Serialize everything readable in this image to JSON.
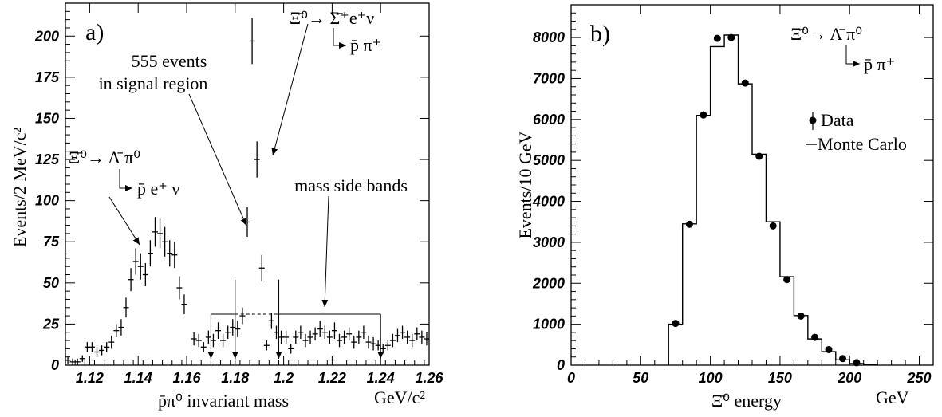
{
  "chart_data": [
    {
      "type": "scatter",
      "panel": "a)",
      "xlabel_main": "p̄π⁰ invariant mass",
      "xlabel_unit": "GeV/c²",
      "ylabel": "Events/2 MeV/c²",
      "xlim": [
        1.11,
        1.26
      ],
      "ylim": [
        0,
        220
      ],
      "xticks": [
        "1.12",
        "1.14",
        "1.16",
        "1.18",
        "1.2",
        "1.22",
        "1.24",
        "1.26"
      ],
      "yticks": [
        "0",
        "25",
        "50",
        "75",
        "100",
        "125",
        "150",
        "175",
        "200"
      ],
      "series": [
        {
          "points": [
            {
              "x": 1.111,
              "y": 3,
              "e": 2
            },
            {
              "x": 1.113,
              "y": 2,
              "e": 2
            },
            {
              "x": 1.115,
              "y": 2,
              "e": 2
            },
            {
              "x": 1.117,
              "y": 4,
              "e": 2
            },
            {
              "x": 1.119,
              "y": 11,
              "e": 3
            },
            {
              "x": 1.121,
              "y": 11,
              "e": 3
            },
            {
              "x": 1.123,
              "y": 8,
              "e": 3
            },
            {
              "x": 1.125,
              "y": 9,
              "e": 3
            },
            {
              "x": 1.127,
              "y": 11,
              "e": 3
            },
            {
              "x": 1.129,
              "y": 14,
              "e": 4
            },
            {
              "x": 1.131,
              "y": 21,
              "e": 4
            },
            {
              "x": 1.133,
              "y": 23,
              "e": 5
            },
            {
              "x": 1.135,
              "y": 35,
              "e": 6
            },
            {
              "x": 1.137,
              "y": 52,
              "e": 7
            },
            {
              "x": 1.139,
              "y": 63,
              "e": 8
            },
            {
              "x": 1.141,
              "y": 60,
              "e": 8
            },
            {
              "x": 1.143,
              "y": 55,
              "e": 7
            },
            {
              "x": 1.145,
              "y": 68,
              "e": 8
            },
            {
              "x": 1.147,
              "y": 81,
              "e": 9
            },
            {
              "x": 1.149,
              "y": 80,
              "e": 9
            },
            {
              "x": 1.151,
              "y": 75,
              "e": 9
            },
            {
              "x": 1.153,
              "y": 68,
              "e": 8
            },
            {
              "x": 1.155,
              "y": 67,
              "e": 8
            },
            {
              "x": 1.157,
              "y": 47,
              "e": 7
            },
            {
              "x": 1.159,
              "y": 37,
              "e": 6
            },
            {
              "x": 1.163,
              "y": 16,
              "e": 4
            },
            {
              "x": 1.165,
              "y": 15,
              "e": 4
            },
            {
              "x": 1.167,
              "y": 11,
              "e": 3
            },
            {
              "x": 1.169,
              "y": 17,
              "e": 4
            },
            {
              "x": 1.171,
              "y": 15,
              "e": 4
            },
            {
              "x": 1.173,
              "y": 21,
              "e": 5
            },
            {
              "x": 1.175,
              "y": 15,
              "e": 4
            },
            {
              "x": 1.177,
              "y": 20,
              "e": 4
            },
            {
              "x": 1.179,
              "y": 23,
              "e": 5
            },
            {
              "x": 1.181,
              "y": 22,
              "e": 5
            },
            {
              "x": 1.183,
              "y": 30,
              "e": 5
            },
            {
              "x": 1.185,
              "y": 87,
              "e": 9
            },
            {
              "x": 1.187,
              "y": 197,
              "e": 14
            },
            {
              "x": 1.189,
              "y": 125,
              "e": 11
            },
            {
              "x": 1.191,
              "y": 59,
              "e": 8
            },
            {
              "x": 1.193,
              "y": 12,
              "e": 3
            },
            {
              "x": 1.195,
              "y": 27,
              "e": 5
            },
            {
              "x": 1.197,
              "y": 20,
              "e": 4
            },
            {
              "x": 1.199,
              "y": 17,
              "e": 4
            },
            {
              "x": 1.201,
              "y": 17,
              "e": 4
            },
            {
              "x": 1.203,
              "y": 10,
              "e": 3
            },
            {
              "x": 1.205,
              "y": 17,
              "e": 4
            },
            {
              "x": 1.207,
              "y": 20,
              "e": 4
            },
            {
              "x": 1.209,
              "y": 15,
              "e": 4
            },
            {
              "x": 1.211,
              "y": 17,
              "e": 4
            },
            {
              "x": 1.213,
              "y": 19,
              "e": 4
            },
            {
              "x": 1.215,
              "y": 22,
              "e": 5
            },
            {
              "x": 1.217,
              "y": 20,
              "e": 4
            },
            {
              "x": 1.219,
              "y": 17,
              "e": 4
            },
            {
              "x": 1.221,
              "y": 21,
              "e": 5
            },
            {
              "x": 1.223,
              "y": 15,
              "e": 4
            },
            {
              "x": 1.225,
              "y": 17,
              "e": 4
            },
            {
              "x": 1.227,
              "y": 19,
              "e": 4
            },
            {
              "x": 1.229,
              "y": 14,
              "e": 4
            },
            {
              "x": 1.231,
              "y": 17,
              "e": 4
            },
            {
              "x": 1.233,
              "y": 20,
              "e": 4
            },
            {
              "x": 1.235,
              "y": 14,
              "e": 4
            },
            {
              "x": 1.237,
              "y": 13,
              "e": 4
            },
            {
              "x": 1.239,
              "y": 12,
              "e": 3
            },
            {
              "x": 1.241,
              "y": 10,
              "e": 3
            },
            {
              "x": 1.243,
              "y": 12,
              "e": 3
            },
            {
              "x": 1.245,
              "y": 15,
              "e": 4
            },
            {
              "x": 1.247,
              "y": 18,
              "e": 4
            },
            {
              "x": 1.249,
              "y": 20,
              "e": 4
            },
            {
              "x": 1.251,
              "y": 17,
              "e": 4
            },
            {
              "x": 1.253,
              "y": 15,
              "e": 4
            },
            {
              "x": 1.255,
              "y": 19,
              "e": 4
            },
            {
              "x": 1.257,
              "y": 17,
              "e": 4
            },
            {
              "x": 1.259,
              "y": 16,
              "e": 4
            }
          ]
        }
      ],
      "annotations": {
        "label_555_line1": "555 events",
        "label_555_line2": "in signal region",
        "label_sidebands": "mass side bands",
        "decay_sigma_1": "Ξ̄⁰→ Σ̄⁺e⁺ν",
        "decay_sigma_2": "p̄ π⁺",
        "decay_lambda_1": "Ξ̄⁰→ Λ̄ π⁰",
        "decay_lambda_2": "p̄ e⁺ ν"
      },
      "regions": {
        "signal": [
          1.18,
          1.198
        ],
        "sideband_left": [
          1.17,
          1.18
        ],
        "sideband_right": [
          1.198,
          1.24
        ],
        "band_height": 31
      }
    },
    {
      "type": "bar",
      "panel": "b)",
      "xlabel_main": "Ξ̄⁰ energy",
      "xlabel_unit": "GeV",
      "ylabel": "Events/10 GeV",
      "xlim": [
        0,
        260
      ],
      "ylim": [
        0,
        8800
      ],
      "xticks": [
        "0",
        "50",
        "100",
        "150",
        "200",
        "250"
      ],
      "yticks": [
        "0",
        "1000",
        "2000",
        "3000",
        "4000",
        "5000",
        "6000",
        "7000",
        "8000"
      ],
      "series": [
        {
          "name": "Data",
          "points": [
            {
              "x": 75,
              "y": 1020
            },
            {
              "x": 85,
              "y": 3440
            },
            {
              "x": 95,
              "y": 6110
            },
            {
              "x": 105,
              "y": 7980
            },
            {
              "x": 115,
              "y": 8000
            },
            {
              "x": 125,
              "y": 6890
            },
            {
              "x": 135,
              "y": 5100
            },
            {
              "x": 145,
              "y": 3400
            },
            {
              "x": 155,
              "y": 2090
            },
            {
              "x": 165,
              "y": 1200
            },
            {
              "x": 175,
              "y": 680
            },
            {
              "x": 185,
              "y": 380
            },
            {
              "x": 195,
              "y": 160
            },
            {
              "x": 205,
              "y": 60
            }
          ]
        },
        {
          "name": "Monte Carlo",
          "bins": [
            {
              "lo": 70,
              "hi": 80,
              "y": 1000
            },
            {
              "lo": 80,
              "hi": 90,
              "y": 3450
            },
            {
              "lo": 90,
              "hi": 100,
              "y": 6100
            },
            {
              "lo": 100,
              "hi": 110,
              "y": 7780
            },
            {
              "lo": 110,
              "hi": 120,
              "y": 8060
            },
            {
              "lo": 120,
              "hi": 130,
              "y": 6870
            },
            {
              "lo": 130,
              "hi": 140,
              "y": 5150
            },
            {
              "lo": 140,
              "hi": 150,
              "y": 3500
            },
            {
              "lo": 150,
              "hi": 160,
              "y": 2160
            },
            {
              "lo": 160,
              "hi": 170,
              "y": 1210
            },
            {
              "lo": 170,
              "hi": 180,
              "y": 640
            },
            {
              "lo": 180,
              "hi": 190,
              "y": 330
            },
            {
              "lo": 190,
              "hi": 200,
              "y": 130
            },
            {
              "lo": 200,
              "hi": 210,
              "y": 40
            },
            {
              "lo": 210,
              "hi": 220,
              "y": 10
            }
          ]
        }
      ],
      "annotations": {
        "decay_1": "Ξ̄⁰→ Λ̄ π⁰",
        "decay_2": "p̄ π⁺"
      },
      "legend": {
        "position": "top-right"
      }
    }
  ]
}
